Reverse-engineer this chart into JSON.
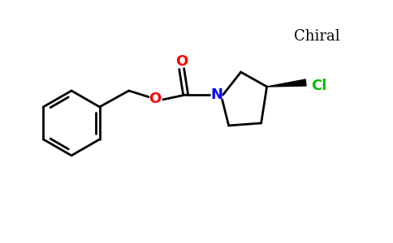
{
  "background_color": "#ffffff",
  "bond_color": "#000000",
  "N_color": "#0000ff",
  "O_color": "#ff0000",
  "Cl_color": "#00bb00",
  "chiral_text": "Chiral",
  "chiral_text_color": "#000000",
  "N_label": "N",
  "O_label": "O",
  "Cl_label": "Cl",
  "carbonyl_O": "O",
  "figsize": [
    4.84,
    3.0
  ],
  "dpi": 100
}
